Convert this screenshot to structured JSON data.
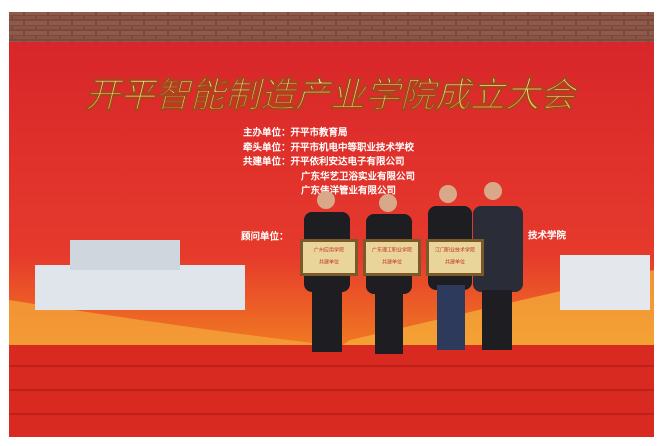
{
  "banner": {
    "title": "开平智能制造产业学院成立大会",
    "lines": [
      "主办单位：开平市教育局",
      "牵头单位：开平市机电中等职业技术学校",
      "共建单位：开平依利安达电子有限公司",
      "广东华艺卫浴实业有限公司",
      "广东伟洋管业有限公司"
    ],
    "advisor_label": "顾问单位：",
    "advisor_tail": "技术学院"
  },
  "plaques": [
    {
      "title": "广州应用学院",
      "sub": "共建单位"
    },
    {
      "title": "广东理工职业学院",
      "sub": "共建单位"
    },
    {
      "title": "江门职业技术学院",
      "sub": "共建单位"
    }
  ]
}
